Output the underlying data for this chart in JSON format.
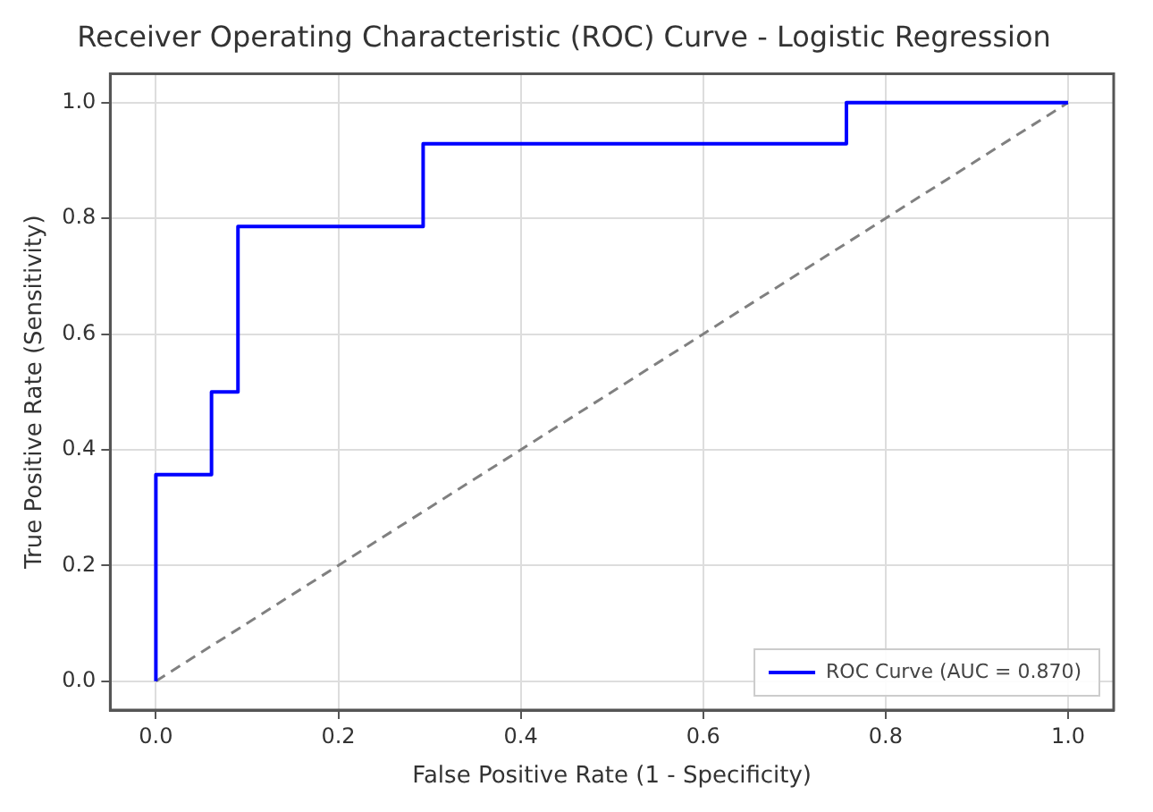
{
  "chart_data": {
    "type": "step",
    "title": "Receiver Operating Characteristic (ROC) Curve - Logistic Regression",
    "xlabel": "False Positive Rate (1 - Specificity)",
    "ylabel": "True Positive Rate (Sensitivity)",
    "series": [
      {
        "name": "ROC Curve (AUC = 0.870)",
        "color": "#0000ff",
        "x": [
          0,
          0,
          0.061,
          0.09,
          0.293,
          0.757,
          1
        ],
        "values": [
          0,
          0.357,
          0.5,
          0.786,
          0.929,
          1,
          1
        ]
      },
      {
        "type": "line",
        "color": "#808080",
        "line_style": "dashed",
        "x": [
          0,
          1
        ],
        "values": [
          0,
          1
        ]
      }
    ],
    "xlim": [
      -0.05,
      1.05
    ],
    "ylim": [
      -0.05,
      1.05
    ],
    "xticks": [
      {
        "value": 0,
        "label": "0.0"
      },
      0.2,
      0.4,
      0.6,
      0.8,
      {
        "value": 1,
        "label": "1.0"
      }
    ],
    "yticks": [
      {
        "value": 0,
        "label": "0.0"
      },
      0.2,
      0.4,
      0.6,
      0.8,
      {
        "value": 1,
        "label": "1.0"
      }
    ],
    "grid": true,
    "legend": "bottom right",
    "marker": "none"
  }
}
